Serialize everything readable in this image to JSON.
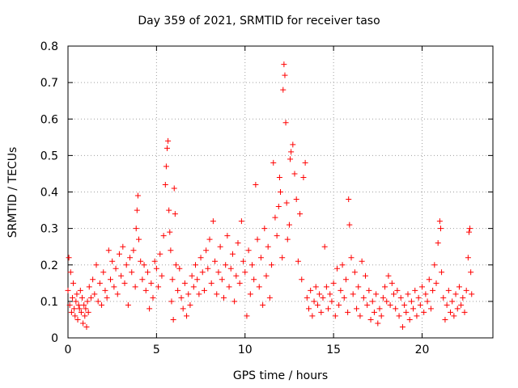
{
  "chart_data": {
    "type": "scatter",
    "title": "Day 359 of 2021, SRMTID for receiver taso",
    "xlabel": "GPS time / hours",
    "ylabel": "SRMTID / TECUs",
    "xlim": [
      0,
      24
    ],
    "ylim": [
      0,
      0.8
    ],
    "xticks": [
      0,
      5,
      10,
      15,
      20
    ],
    "yticks": [
      0,
      0.1,
      0.2,
      0.3,
      0.4,
      0.5,
      0.6,
      0.7,
      0.8
    ],
    "grid": true,
    "marker": "+",
    "color": "#ff0000",
    "series": [
      {
        "name": "SRMTID",
        "points": [
          [
            0.0,
            0.13
          ],
          [
            0.05,
            0.22
          ],
          [
            0.1,
            0.09
          ],
          [
            0.15,
            0.18
          ],
          [
            0.2,
            0.07
          ],
          [
            0.25,
            0.11
          ],
          [
            0.3,
            0.15
          ],
          [
            0.35,
            0.08
          ],
          [
            0.4,
            0.06
          ],
          [
            0.45,
            0.1
          ],
          [
            0.5,
            0.12
          ],
          [
            0.55,
            0.05
          ],
          [
            0.6,
            0.09
          ],
          [
            0.65,
            0.08
          ],
          [
            0.7,
            0.13
          ],
          [
            0.75,
            0.07
          ],
          [
            0.8,
            0.11
          ],
          [
            0.85,
            0.04
          ],
          [
            0.9,
            0.09
          ],
          [
            0.95,
            0.06
          ],
          [
            1.0,
            0.08
          ],
          [
            1.05,
            0.03
          ],
          [
            1.1,
            0.1
          ],
          [
            1.15,
            0.07
          ],
          [
            1.2,
            0.14
          ],
          [
            1.3,
            0.11
          ],
          [
            1.4,
            0.16
          ],
          [
            1.5,
            0.12
          ],
          [
            1.6,
            0.2
          ],
          [
            1.7,
            0.1
          ],
          [
            1.8,
            0.15
          ],
          [
            1.9,
            0.09
          ],
          [
            2.0,
            0.18
          ],
          [
            2.1,
            0.13
          ],
          [
            2.2,
            0.11
          ],
          [
            2.3,
            0.24
          ],
          [
            2.4,
            0.16
          ],
          [
            2.5,
            0.21
          ],
          [
            2.6,
            0.14
          ],
          [
            2.7,
            0.19
          ],
          [
            2.8,
            0.12
          ],
          [
            2.9,
            0.23
          ],
          [
            3.0,
            0.17
          ],
          [
            3.1,
            0.25
          ],
          [
            3.2,
            0.15
          ],
          [
            3.3,
            0.2
          ],
          [
            3.4,
            0.09
          ],
          [
            3.5,
            0.22
          ],
          [
            3.6,
            0.18
          ],
          [
            3.7,
            0.24
          ],
          [
            3.8,
            0.14
          ],
          [
            3.85,
            0.3
          ],
          [
            3.9,
            0.35
          ],
          [
            3.95,
            0.39
          ],
          [
            4.0,
            0.27
          ],
          [
            4.1,
            0.21
          ],
          [
            4.2,
            0.16
          ],
          [
            4.3,
            0.2
          ],
          [
            4.4,
            0.13
          ],
          [
            4.5,
            0.18
          ],
          [
            4.6,
            0.08
          ],
          [
            4.7,
            0.15
          ],
          [
            4.8,
            0.11
          ],
          [
            4.9,
            0.21
          ],
          [
            5.0,
            0.19
          ],
          [
            5.1,
            0.14
          ],
          [
            5.2,
            0.23
          ],
          [
            5.3,
            0.17
          ],
          [
            5.4,
            0.28
          ],
          [
            5.5,
            0.42
          ],
          [
            5.55,
            0.47
          ],
          [
            5.6,
            0.52
          ],
          [
            5.65,
            0.54
          ],
          [
            5.7,
            0.35
          ],
          [
            5.75,
            0.29
          ],
          [
            5.8,
            0.24
          ],
          [
            5.85,
            0.1
          ],
          [
            5.9,
            0.16
          ],
          [
            5.95,
            0.05
          ],
          [
            6.0,
            0.41
          ],
          [
            6.05,
            0.34
          ],
          [
            6.1,
            0.2
          ],
          [
            6.2,
            0.13
          ],
          [
            6.3,
            0.19
          ],
          [
            6.4,
            0.11
          ],
          [
            6.5,
            0.08
          ],
          [
            6.6,
            0.15
          ],
          [
            6.7,
            0.06
          ],
          [
            6.8,
            0.12
          ],
          [
            6.9,
            0.09
          ],
          [
            7.0,
            0.17
          ],
          [
            7.1,
            0.14
          ],
          [
            7.2,
            0.2
          ],
          [
            7.3,
            0.16
          ],
          [
            7.4,
            0.12
          ],
          [
            7.5,
            0.22
          ],
          [
            7.6,
            0.18
          ],
          [
            7.7,
            0.13
          ],
          [
            7.8,
            0.24
          ],
          [
            7.9,
            0.19
          ],
          [
            8.0,
            0.27
          ],
          [
            8.1,
            0.15
          ],
          [
            8.2,
            0.32
          ],
          [
            8.3,
            0.21
          ],
          [
            8.4,
            0.12
          ],
          [
            8.5,
            0.18
          ],
          [
            8.6,
            0.25
          ],
          [
            8.7,
            0.16
          ],
          [
            8.8,
            0.11
          ],
          [
            8.9,
            0.2
          ],
          [
            9.0,
            0.28
          ],
          [
            9.1,
            0.14
          ],
          [
            9.2,
            0.19
          ],
          [
            9.3,
            0.23
          ],
          [
            9.4,
            0.1
          ],
          [
            9.5,
            0.17
          ],
          [
            9.6,
            0.26
          ],
          [
            9.7,
            0.15
          ],
          [
            9.8,
            0.32
          ],
          [
            9.9,
            0.21
          ],
          [
            10.0,
            0.18
          ],
          [
            10.1,
            0.06
          ],
          [
            10.2,
            0.24
          ],
          [
            10.3,
            0.12
          ],
          [
            10.4,
            0.2
          ],
          [
            10.5,
            0.16
          ],
          [
            10.6,
            0.42
          ],
          [
            10.7,
            0.27
          ],
          [
            10.8,
            0.14
          ],
          [
            10.9,
            0.22
          ],
          [
            11.0,
            0.09
          ],
          [
            11.1,
            0.3
          ],
          [
            11.2,
            0.17
          ],
          [
            11.3,
            0.25
          ],
          [
            11.4,
            0.11
          ],
          [
            11.5,
            0.2
          ],
          [
            11.6,
            0.48
          ],
          [
            11.7,
            0.33
          ],
          [
            11.8,
            0.28
          ],
          [
            11.9,
            0.36
          ],
          [
            11.95,
            0.44
          ],
          [
            12.0,
            0.4
          ],
          [
            12.1,
            0.22
          ],
          [
            12.15,
            0.68
          ],
          [
            12.2,
            0.75
          ],
          [
            12.25,
            0.72
          ],
          [
            12.3,
            0.59
          ],
          [
            12.35,
            0.37
          ],
          [
            12.4,
            0.27
          ],
          [
            12.5,
            0.31
          ],
          [
            12.55,
            0.49
          ],
          [
            12.6,
            0.51
          ],
          [
            12.7,
            0.53
          ],
          [
            12.8,
            0.45
          ],
          [
            12.9,
            0.38
          ],
          [
            13.0,
            0.21
          ],
          [
            13.1,
            0.34
          ],
          [
            13.2,
            0.16
          ],
          [
            13.3,
            0.44
          ],
          [
            13.4,
            0.48
          ],
          [
            13.5,
            0.11
          ],
          [
            13.6,
            0.08
          ],
          [
            13.7,
            0.13
          ],
          [
            13.8,
            0.06
          ],
          [
            13.9,
            0.1
          ],
          [
            14.0,
            0.14
          ],
          [
            14.1,
            0.09
          ],
          [
            14.2,
            0.12
          ],
          [
            14.3,
            0.07
          ],
          [
            14.4,
            0.11
          ],
          [
            14.5,
            0.25
          ],
          [
            14.6,
            0.14
          ],
          [
            14.7,
            0.08
          ],
          [
            14.8,
            0.12
          ],
          [
            14.9,
            0.1
          ],
          [
            15.0,
            0.15
          ],
          [
            15.1,
            0.06
          ],
          [
            15.2,
            0.19
          ],
          [
            15.3,
            0.09
          ],
          [
            15.4,
            0.13
          ],
          [
            15.5,
            0.2
          ],
          [
            15.6,
            0.11
          ],
          [
            15.7,
            0.16
          ],
          [
            15.8,
            0.07
          ],
          [
            15.85,
            0.38
          ],
          [
            15.9,
            0.31
          ],
          [
            16.0,
            0.22
          ],
          [
            16.1,
            0.12
          ],
          [
            16.2,
            0.18
          ],
          [
            16.3,
            0.08
          ],
          [
            16.4,
            0.14
          ],
          [
            16.5,
            0.06
          ],
          [
            16.6,
            0.21
          ],
          [
            16.7,
            0.11
          ],
          [
            16.8,
            0.17
          ],
          [
            16.9,
            0.09
          ],
          [
            17.0,
            0.13
          ],
          [
            17.1,
            0.05
          ],
          [
            17.2,
            0.1
          ],
          [
            17.3,
            0.07
          ],
          [
            17.4,
            0.12
          ],
          [
            17.5,
            0.04
          ],
          [
            17.6,
            0.08
          ],
          [
            17.7,
            0.06
          ],
          [
            17.8,
            0.11
          ],
          [
            17.9,
            0.14
          ],
          [
            18.0,
            0.1
          ],
          [
            18.1,
            0.17
          ],
          [
            18.2,
            0.09
          ],
          [
            18.3,
            0.15
          ],
          [
            18.4,
            0.12
          ],
          [
            18.5,
            0.08
          ],
          [
            18.6,
            0.13
          ],
          [
            18.7,
            0.06
          ],
          [
            18.8,
            0.11
          ],
          [
            18.9,
            0.03
          ],
          [
            19.0,
            0.09
          ],
          [
            19.1,
            0.07
          ],
          [
            19.2,
            0.12
          ],
          [
            19.3,
            0.05
          ],
          [
            19.4,
            0.1
          ],
          [
            19.5,
            0.08
          ],
          [
            19.6,
            0.13
          ],
          [
            19.7,
            0.06
          ],
          [
            19.8,
            0.11
          ],
          [
            19.9,
            0.09
          ],
          [
            20.0,
            0.14
          ],
          [
            20.1,
            0.07
          ],
          [
            20.2,
            0.12
          ],
          [
            20.3,
            0.1
          ],
          [
            20.4,
            0.16
          ],
          [
            20.5,
            0.08
          ],
          [
            20.6,
            0.13
          ],
          [
            20.7,
            0.2
          ],
          [
            20.8,
            0.15
          ],
          [
            20.9,
            0.26
          ],
          [
            21.0,
            0.32
          ],
          [
            21.05,
            0.3
          ],
          [
            21.1,
            0.18
          ],
          [
            21.2,
            0.11
          ],
          [
            21.3,
            0.05
          ],
          [
            21.4,
            0.09
          ],
          [
            21.5,
            0.13
          ],
          [
            21.6,
            0.07
          ],
          [
            21.7,
            0.1
          ],
          [
            21.8,
            0.06
          ],
          [
            21.9,
            0.12
          ],
          [
            22.0,
            0.08
          ],
          [
            22.1,
            0.14
          ],
          [
            22.2,
            0.09
          ],
          [
            22.3,
            0.11
          ],
          [
            22.4,
            0.07
          ],
          [
            22.5,
            0.13
          ],
          [
            22.6,
            0.22
          ],
          [
            22.65,
            0.29
          ],
          [
            22.7,
            0.3
          ],
          [
            22.75,
            0.18
          ],
          [
            22.8,
            0.12
          ]
        ]
      }
    ]
  }
}
